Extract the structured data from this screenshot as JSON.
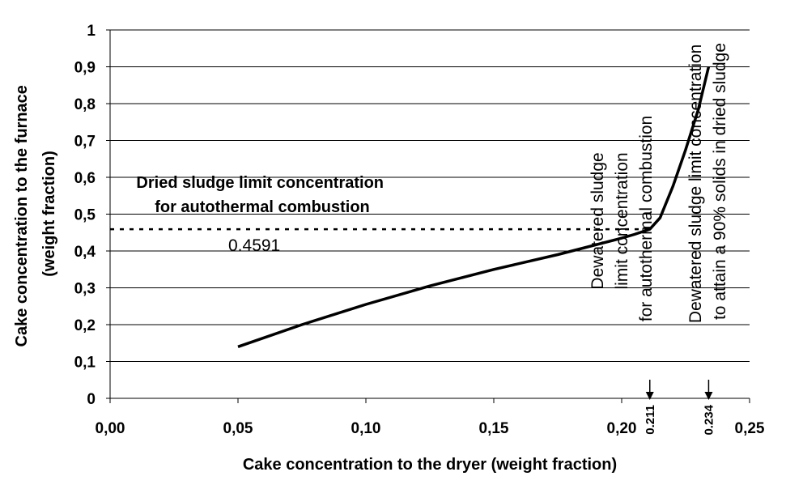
{
  "chart_data": {
    "type": "line",
    "xlabel": "Cake concentration to the dryer (weight fraction)",
    "ylabel_lines": [
      "Cake concentration to the furnace",
      "(weight fraction)"
    ],
    "xlim": [
      0,
      0.25
    ],
    "ylim": [
      0,
      1
    ],
    "x_ticks": [
      {
        "value": 0.0,
        "label": "0,00"
      },
      {
        "value": 0.05,
        "label": "0,05"
      },
      {
        "value": 0.1,
        "label": "0,10"
      },
      {
        "value": 0.15,
        "label": "0,15"
      },
      {
        "value": 0.2,
        "label": "0,20"
      },
      {
        "value": 0.25,
        "label": "0,25"
      }
    ],
    "y_ticks": [
      {
        "value": 0,
        "label": "0"
      },
      {
        "value": 0.1,
        "label": "0,1"
      },
      {
        "value": 0.2,
        "label": "0,2"
      },
      {
        "value": 0.3,
        "label": "0,3"
      },
      {
        "value": 0.4,
        "label": "0,4"
      },
      {
        "value": 0.5,
        "label": "0,5"
      },
      {
        "value": 0.6,
        "label": "0,6"
      },
      {
        "value": 0.7,
        "label": "0,7"
      },
      {
        "value": 0.8,
        "label": "0,8"
      },
      {
        "value": 0.9,
        "label": "0,9"
      },
      {
        "value": 1,
        "label": "1"
      }
    ],
    "grid": {
      "horizontal": true,
      "vertical": false
    },
    "series": [
      {
        "color": "#000000",
        "x": [
          0.05,
          0.075,
          0.1,
          0.125,
          0.15,
          0.175,
          0.2,
          0.205,
          0.211,
          0.215,
          0.22,
          0.225,
          0.23,
          0.234
        ],
        "y": [
          0.14,
          0.2,
          0.255,
          0.305,
          0.35,
          0.39,
          0.435,
          0.445,
          0.4591,
          0.49,
          0.575,
          0.675,
          0.785,
          0.9
        ]
      }
    ],
    "reference_line": {
      "y": 0.4591,
      "x_start": 0,
      "x_end": 0.211,
      "style": "dotted"
    },
    "annotations": {
      "dried_limit": [
        "Dried sludge limit concentration",
        "for autothermal combustion"
      ],
      "ref_value_label": "0.4591",
      "dewatered_autothermal": [
        "Dewatered sludge",
        "limit concentration",
        "for autothermal combustion"
      ],
      "dewatered_90": [
        "Dewatered sludge limit concentration",
        "to attain a 90% solids in dried sludge"
      ]
    },
    "markers": [
      {
        "x": 0.211,
        "label": "0.211"
      },
      {
        "x": 0.234,
        "label": "0.234"
      }
    ]
  }
}
